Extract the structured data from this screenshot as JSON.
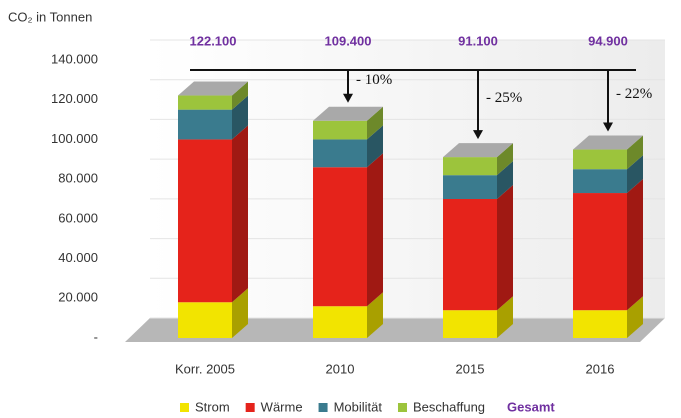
{
  "chart_data": {
    "type": "bar3d-stacked",
    "y_axis_label": "CO₂ in Tonnen",
    "categories": [
      "Korr. 2005",
      "2010",
      "2015",
      "2016"
    ],
    "series": [
      {
        "name": "Strom",
        "color": "#f2e400",
        "values": [
          18000,
          16000,
          14000,
          14000
        ]
      },
      {
        "name": "Wärme",
        "color": "#e5231b",
        "values": [
          82000,
          70000,
          56000,
          59000
        ]
      },
      {
        "name": "Mobilität",
        "color": "#3a7b8e",
        "values": [
          15000,
          14000,
          12000,
          12000
        ]
      },
      {
        "name": "Beschaffung",
        "color": "#9cc43c",
        "values": [
          7100,
          9400,
          9100,
          9900
        ]
      }
    ],
    "totals": {
      "name": "Gesamt",
      "color": "#7030a0",
      "values": [
        122100,
        109400,
        91100,
        94900
      ],
      "value_labels": [
        "122.100",
        "109.400",
        "91.100",
        "94.900"
      ]
    },
    "annotations": [
      "- 10%",
      "- 25%",
      "- 22%"
    ],
    "ylim": [
      0,
      140000
    ],
    "yticks": [
      {
        "value": 0,
        "label": "-"
      },
      {
        "value": 20000,
        "label": "20.000"
      },
      {
        "value": 40000,
        "label": "40.000"
      },
      {
        "value": 60000,
        "label": "60.000"
      },
      {
        "value": 80000,
        "label": "80.000"
      },
      {
        "value": 100000,
        "label": "100.000"
      },
      {
        "value": 120000,
        "label": "120.000"
      },
      {
        "value": 140000,
        "label": "140.000"
      }
    ]
  }
}
